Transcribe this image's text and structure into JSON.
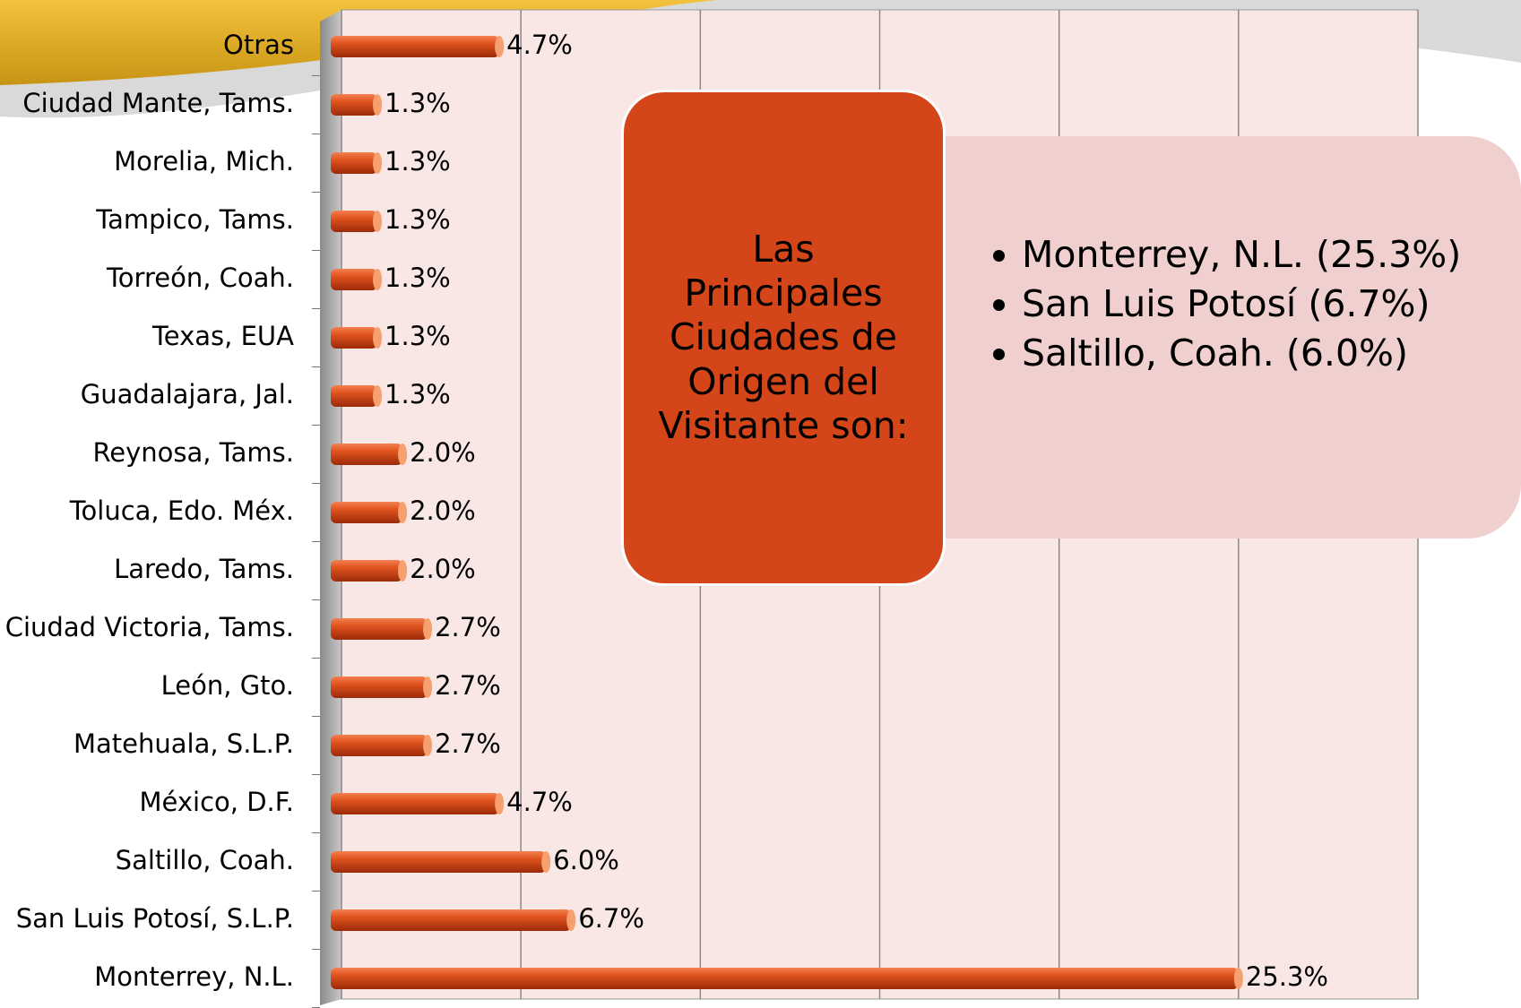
{
  "chart_data": {
    "type": "bar",
    "orientation": "horizontal",
    "categories": [
      "Otras",
      "Ciudad Mante, Tams.",
      "Morelia, Mich.",
      "Tampico, Tams.",
      "Torreón, Coah.",
      "Texas, EUA",
      "Guadalajara, Jal.",
      "Reynosa, Tams.",
      "Toluca, Edo. Méx.",
      "Laredo, Tams.",
      "Ciudad Victoria, Tams.",
      "León, Gto.",
      "Matehuala, S.L.P.",
      "México, D.F.",
      "Saltillo, Coah.",
      "San Luis Potosí, S.L.P.",
      "Monterrey, N.L."
    ],
    "values": [
      4.7,
      1.3,
      1.3,
      1.3,
      1.3,
      1.3,
      1.3,
      2.0,
      2.0,
      2.0,
      2.7,
      2.7,
      2.7,
      4.7,
      6.0,
      6.7,
      25.3
    ],
    "value_labels": [
      "4.7%",
      "1.3%",
      "1.3%",
      "1.3%",
      "1.3%",
      "1.3%",
      "1.3%",
      "2.0%",
      "2.0%",
      "2.0%",
      "2.7%",
      "2.7%",
      "2.7%",
      "4.7%",
      "6.0%",
      "6.7%",
      "25.3%"
    ],
    "color": "#d9481c",
    "xlim": [
      0,
      30
    ],
    "xticks": [
      0,
      5,
      10,
      15,
      20,
      25,
      30
    ],
    "grid": true,
    "callout_title": "Las Principales Ciudades de Origen del Visitante son:",
    "callout_items": [
      "Monterrey, N.L. (25.3%)",
      "San Luis Potosí (6.7%)",
      "Saltillo, Coah. (6.0%)"
    ]
  }
}
